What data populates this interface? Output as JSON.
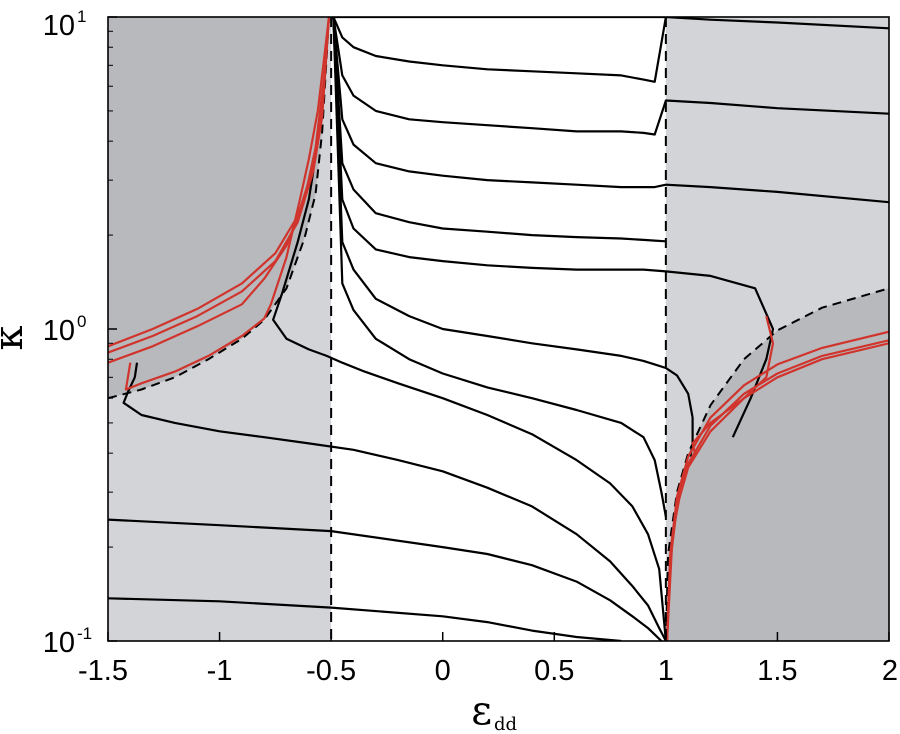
{
  "chart_data": {
    "type": "line",
    "xlabel": {
      "symbol": "ε",
      "subscript": "dd"
    },
    "ylabel": "κ",
    "xlim": [
      -1.5,
      2
    ],
    "ylim": [
      0.1,
      10
    ],
    "yscale": "log",
    "x_ticks": [
      "-1.5",
      "-1",
      "-0.5",
      "0",
      "0.5",
      "1",
      "1.5",
      "2"
    ],
    "y_ticks": [
      {
        "base": "10",
        "exp": "-1",
        "value": 0.1
      },
      {
        "base": "10",
        "exp": "0",
        "value": 1
      },
      {
        "base": "10",
        "exp": "1",
        "value": 10
      }
    ],
    "vertical_dashed_lines": [
      -0.5,
      1
    ],
    "colors": {
      "shade_light": "#d3d4d8",
      "shade_dark": "#b8b9bd",
      "black_curves": "#000000",
      "red_curves": "#d0342c"
    },
    "regions": [
      {
        "shade": "light",
        "x": [
          -1.5,
          -0.5
        ],
        "y": [
          0.1,
          10
        ]
      },
      {
        "shade": "light",
        "x": [
          1,
          2
        ],
        "y": [
          0.1,
          10
        ]
      },
      {
        "shade": "dark",
        "boundary": [
          [
            -1.5,
            10
          ],
          [
            -1.5,
            0.6
          ],
          [
            -1.35,
            0.64
          ],
          [
            -1.2,
            0.7
          ],
          [
            -1.05,
            0.8
          ],
          [
            -0.9,
            0.93
          ],
          [
            -0.8,
            1.07
          ],
          [
            -0.7,
            1.35
          ],
          [
            -0.62,
            1.95
          ],
          [
            -0.57,
            2.7
          ],
          [
            -0.54,
            4.3
          ],
          [
            -0.52,
            7.5
          ],
          [
            -0.51,
            10
          ]
        ]
      },
      {
        "shade": "dark",
        "boundary": [
          [
            2,
            0.1
          ],
          [
            1,
            0.1
          ],
          [
            1.01,
            0.19
          ],
          [
            1.05,
            0.3
          ],
          [
            1.1,
            0.4
          ],
          [
            1.2,
            0.57
          ],
          [
            1.35,
            0.8
          ],
          [
            1.5,
            0.99
          ],
          [
            1.7,
            1.17
          ],
          [
            2,
            1.35
          ]
        ]
      }
    ],
    "dashed_curves": [
      {
        "x": [
          -1.5,
          -1.35,
          -1.2,
          -1.05,
          -0.9,
          -0.8,
          -0.7,
          -0.62,
          -0.57,
          -0.54,
          -0.52,
          -0.51
        ],
        "y": [
          0.6,
          0.64,
          0.7,
          0.8,
          0.93,
          1.07,
          1.35,
          1.95,
          2.7,
          4.3,
          7.5,
          10
        ]
      },
      {
        "x": [
          1,
          1.01,
          1.05,
          1.1,
          1.2,
          1.35,
          1.5,
          1.7,
          2
        ],
        "y": [
          0.1,
          0.19,
          0.3,
          0.4,
          0.57,
          0.8,
          0.99,
          1.17,
          1.35
        ]
      }
    ],
    "series": [
      {
        "color": "black",
        "x": [
          -0.5,
          -0.45,
          -0.4,
          -0.3,
          -0.15,
          0,
          0.2,
          0.4,
          0.6,
          0.8,
          0.9,
          0.95,
          0.98,
          0.995,
          1
        ],
        "y": [
          10,
          10,
          10,
          10,
          10,
          10,
          10,
          10,
          10,
          10,
          10,
          10,
          10,
          10,
          10
        ]
      },
      {
        "color": "black",
        "x": [
          -0.49,
          -0.45,
          -0.4,
          -0.3,
          -0.15,
          0,
          0.2,
          0.4,
          0.6,
          0.8,
          0.9,
          0.95,
          1,
          1.2,
          1.5,
          2
        ],
        "y": [
          10,
          8.6,
          8,
          7.5,
          7.2,
          7,
          6.8,
          6.7,
          6.6,
          6.5,
          6.3,
          6.2,
          10,
          9.8,
          9.6,
          9.2
        ]
      },
      {
        "color": "black",
        "x": [
          -0.49,
          -0.45,
          -0.4,
          -0.3,
          -0.15,
          0,
          0.2,
          0.4,
          0.6,
          0.8,
          0.9,
          0.95,
          1,
          1.2,
          1.5,
          2
        ],
        "y": [
          10,
          6.5,
          5.6,
          5,
          4.7,
          4.6,
          4.5,
          4.4,
          4.3,
          4.3,
          4.25,
          4.2,
          5.4,
          5.3,
          5.1,
          4.9
        ]
      },
      {
        "color": "black",
        "x": [
          -0.49,
          -0.45,
          -0.4,
          -0.3,
          -0.15,
          0,
          0.2,
          0.4,
          0.6,
          0.8,
          0.9,
          0.95,
          1,
          1.2,
          1.5,
          2
        ],
        "y": [
          10,
          4.7,
          3.9,
          3.4,
          3.2,
          3.1,
          3,
          2.95,
          2.9,
          2.85,
          2.85,
          2.85,
          2.9,
          2.85,
          2.75,
          2.55
        ]
      },
      {
        "color": "black",
        "x": [
          -0.49,
          -0.45,
          -0.4,
          -0.3,
          -0.15,
          0,
          0.2,
          0.4,
          0.6,
          0.8,
          0.9,
          0.95,
          1
        ],
        "y": [
          10,
          3.4,
          2.8,
          2.35,
          2.2,
          2.1,
          2.05,
          2,
          1.97,
          1.95,
          1.93,
          1.92,
          1.91
        ]
      },
      {
        "color": "black",
        "x": [
          -0.49,
          -0.45,
          -0.4,
          -0.3,
          -0.15,
          0,
          0.2,
          0.4,
          0.6,
          0.8,
          0.9,
          0.95,
          1,
          1.2,
          1.4,
          1.48,
          1.45,
          1.38,
          1.3
        ],
        "y": [
          10,
          2.6,
          2.1,
          1.8,
          1.7,
          1.65,
          1.6,
          1.57,
          1.55,
          1.55,
          1.55,
          1.54,
          1.53,
          1.48,
          1.35,
          1,
          0.8,
          0.6,
          0.45
        ]
      },
      {
        "color": "black",
        "x": [
          -0.49,
          -0.45,
          -0.4,
          -0.3,
          -0.15,
          0,
          0.2,
          0.4,
          0.6,
          0.8,
          0.9,
          0.95,
          1,
          1.05,
          1.1,
          1.12,
          1.12,
          1.11
        ],
        "y": [
          10,
          1.9,
          1.55,
          1.25,
          1.1,
          1,
          0.95,
          0.9,
          0.86,
          0.82,
          0.79,
          0.77,
          0.75,
          0.71,
          0.62,
          0.52,
          0.43,
          0.39
        ]
      },
      {
        "color": "black",
        "x": [
          -0.49,
          -0.45,
          -0.4,
          -0.3,
          -0.15,
          0,
          0.2,
          0.4,
          0.6,
          0.8,
          0.9,
          0.95,
          0.98,
          1
        ],
        "y": [
          10,
          1.4,
          1.15,
          0.93,
          0.8,
          0.72,
          0.65,
          0.6,
          0.55,
          0.5,
          0.45,
          0.38,
          0.3,
          0.25
        ]
      },
      {
        "color": "black",
        "x": [
          -0.58,
          -0.6,
          -0.65,
          -0.72,
          -0.76,
          -0.7,
          -0.6,
          -0.52,
          -0.45,
          -0.35,
          -0.2,
          0,
          0.2,
          0.4,
          0.6,
          0.75,
          0.85,
          0.92,
          0.97,
          1
        ],
        "y": [
          3.2,
          2.6,
          1.9,
          1.3,
          1.07,
          0.93,
          0.86,
          0.82,
          0.78,
          0.73,
          0.67,
          0.6,
          0.53,
          0.46,
          0.38,
          0.32,
          0.27,
          0.22,
          0.17,
          0.1
        ]
      },
      {
        "color": "black",
        "x": [
          -1.37,
          -1.38,
          -1.41,
          -1.43,
          -1.35,
          -1.2,
          -1,
          -0.8,
          -0.6,
          -0.4,
          -0.2,
          0,
          0.2,
          0.4,
          0.6,
          0.75,
          0.85,
          0.92,
          0.97,
          1
        ],
        "y": [
          0.78,
          0.7,
          0.63,
          0.58,
          0.53,
          0.5,
          0.47,
          0.45,
          0.43,
          0.41,
          0.38,
          0.35,
          0.31,
          0.27,
          0.22,
          0.18,
          0.15,
          0.13,
          0.11,
          0.1
        ]
      },
      {
        "color": "black",
        "x": [
          -1.5,
          -1,
          -0.5,
          0,
          0.2,
          0.4,
          0.6,
          0.75,
          0.85,
          0.92,
          0.98
        ],
        "y": [
          0.245,
          0.235,
          0.225,
          0.2,
          0.19,
          0.175,
          0.155,
          0.135,
          0.12,
          0.11,
          0.1
        ]
      },
      {
        "color": "black",
        "x": [
          -1.5,
          -1,
          -0.5,
          0,
          0.2,
          0.4,
          0.6,
          0.8
        ],
        "y": [
          0.137,
          0.134,
          0.128,
          0.12,
          0.115,
          0.108,
          0.103,
          0.1
        ]
      },
      {
        "color": "red",
        "x": [
          -1.5,
          -1.3,
          -1.1,
          -0.9,
          -0.75,
          -0.65,
          -0.58,
          -0.54,
          -0.52,
          -0.51
        ],
        "y": [
          0.88,
          1,
          1.16,
          1.4,
          1.75,
          2.3,
          3.3,
          5,
          8,
          10
        ]
      },
      {
        "color": "red",
        "x": [
          -1.5,
          -1.3,
          -1.1,
          -0.9,
          -0.75,
          -0.65,
          -0.58,
          -0.54,
          -0.52,
          -0.51
        ],
        "y": [
          0.84,
          0.95,
          1.1,
          1.32,
          1.65,
          2.2,
          3.2,
          4.8,
          7.8,
          10
        ]
      },
      {
        "color": "red",
        "x": [
          -1.5,
          -1.3,
          -1.1,
          -0.9,
          -0.8,
          -0.7,
          -0.62,
          -0.57,
          -0.53,
          -0.51
        ],
        "y": [
          0.78,
          0.88,
          1.02,
          1.2,
          1.45,
          1.85,
          2.6,
          3.8,
          6.5,
          10
        ]
      },
      {
        "color": "red",
        "x": [
          -1.4,
          -1.42,
          -1.35,
          -1.2,
          -1.05,
          -0.9,
          -0.8,
          -0.77,
          -0.7,
          -0.64,
          -0.6,
          -0.56,
          -0.53,
          -0.51
        ],
        "y": [
          0.78,
          0.64,
          0.67,
          0.73,
          0.82,
          0.95,
          1.08,
          1.2,
          1.7,
          2.6,
          3.5,
          5,
          7.5,
          10
        ]
      },
      {
        "color": "red",
        "x": [
          1.005,
          1.02,
          1.05,
          1.1,
          1.2,
          1.35,
          1.5,
          1.7,
          2
        ],
        "y": [
          0.1,
          0.18,
          0.27,
          0.36,
          0.47,
          0.6,
          0.7,
          0.8,
          0.9
        ]
      },
      {
        "color": "red",
        "x": [
          1.005,
          1.02,
          1.05,
          1.1,
          1.2,
          1.35,
          1.5,
          1.7,
          2
        ],
        "y": [
          0.1,
          0.185,
          0.28,
          0.37,
          0.49,
          0.62,
          0.72,
          0.82,
          0.92
        ]
      },
      {
        "color": "red",
        "x": [
          1.005,
          1.02,
          1.05,
          1.1,
          1.2,
          1.35,
          1.5,
          1.7,
          2
        ],
        "y": [
          0.1,
          0.19,
          0.29,
          0.39,
          0.52,
          0.66,
          0.77,
          0.87,
          0.98
        ]
      },
      {
        "color": "red",
        "x": [
          1.005,
          1.03,
          1.08,
          1.13,
          1.12,
          1.2,
          1.35,
          1.45,
          1.48,
          1.45
        ],
        "y": [
          0.1,
          0.22,
          0.34,
          0.4,
          0.43,
          0.5,
          0.6,
          0.7,
          0.9,
          1.1
        ]
      }
    ]
  }
}
